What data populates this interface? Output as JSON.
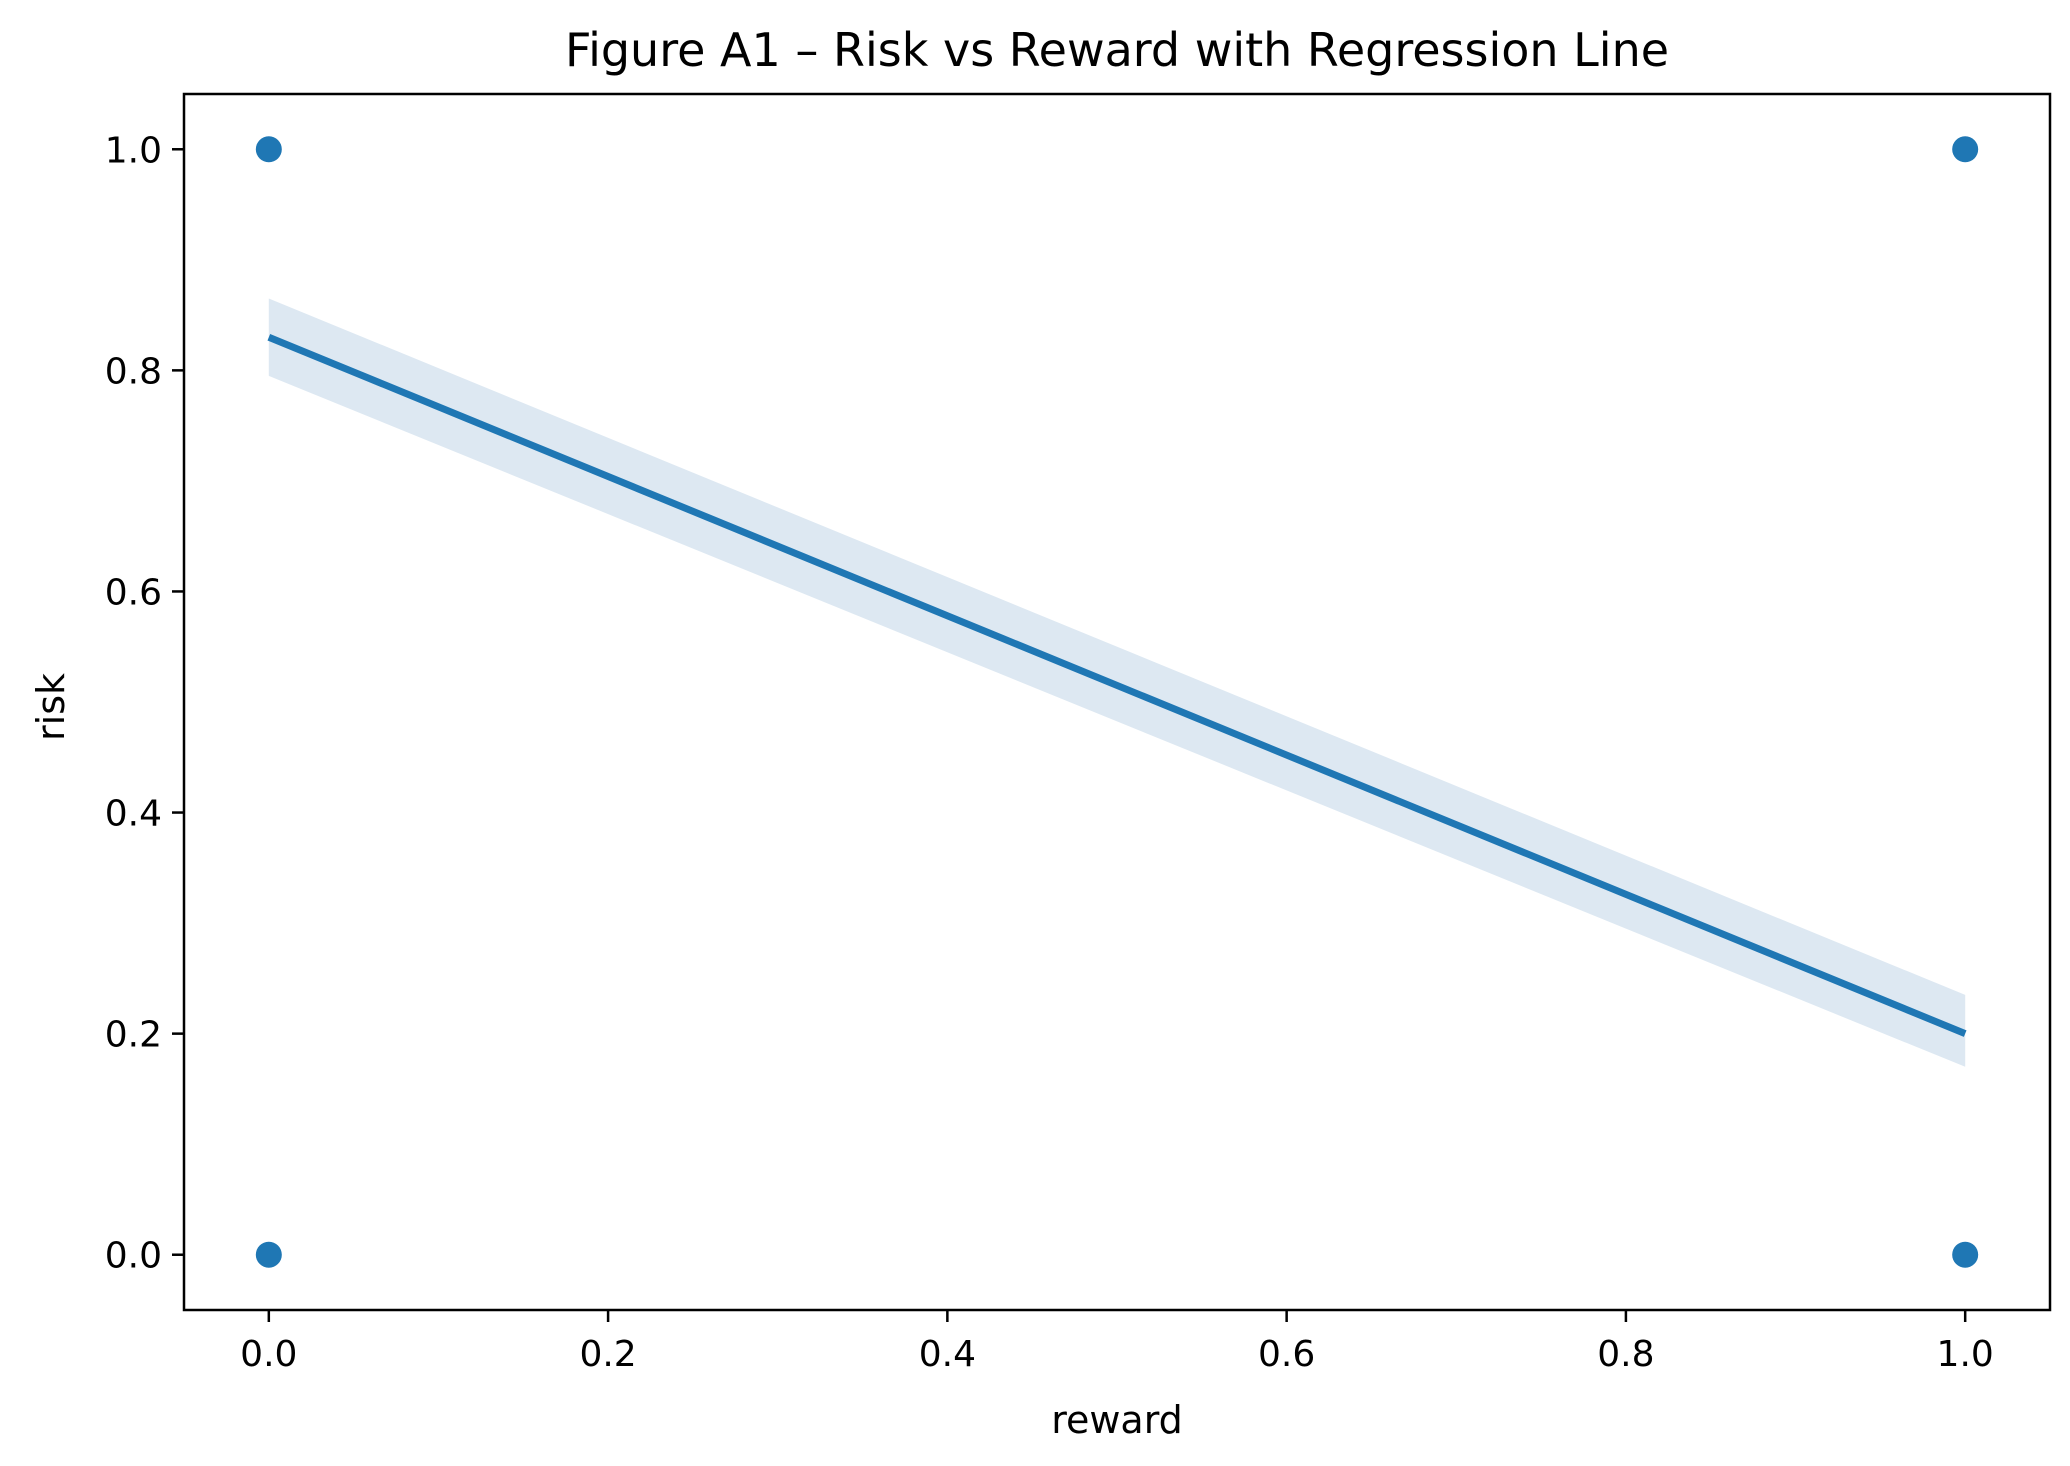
{
  "chart_data": {
    "type": "scatter",
    "title": "Figure A1 – Risk vs Reward with Regression Line",
    "xlabel": "reward",
    "ylabel": "risk",
    "xlim": [
      -0.05,
      1.05
    ],
    "ylim": [
      -0.05,
      1.05
    ],
    "x_ticks": [
      0.0,
      0.2,
      0.4,
      0.6,
      0.8,
      1.0
    ],
    "x_tick_labels": [
      "0.0",
      "0.2",
      "0.4",
      "0.6",
      "0.8",
      "1.0"
    ],
    "y_ticks": [
      0.0,
      0.2,
      0.4,
      0.6,
      0.8,
      1.0
    ],
    "y_tick_labels": [
      "0.0",
      "0.2",
      "0.4",
      "0.6",
      "0.8",
      "1.0"
    ],
    "grid": false,
    "points": [
      {
        "x": 0.0,
        "y": 1.0
      },
      {
        "x": 0.0,
        "y": 0.0
      },
      {
        "x": 1.0,
        "y": 1.0
      },
      {
        "x": 1.0,
        "y": 0.0
      }
    ],
    "regression": {
      "x": [
        0.0,
        1.0
      ],
      "y": [
        0.83,
        0.2
      ],
      "ci_lower": [
        0.795,
        0.17
      ],
      "ci_upper": [
        0.865,
        0.235
      ]
    },
    "colors": {
      "points": "#1f77b4",
      "line": "#1f77b4",
      "ci_band": "#dde8f2",
      "axes": "#000000"
    }
  }
}
